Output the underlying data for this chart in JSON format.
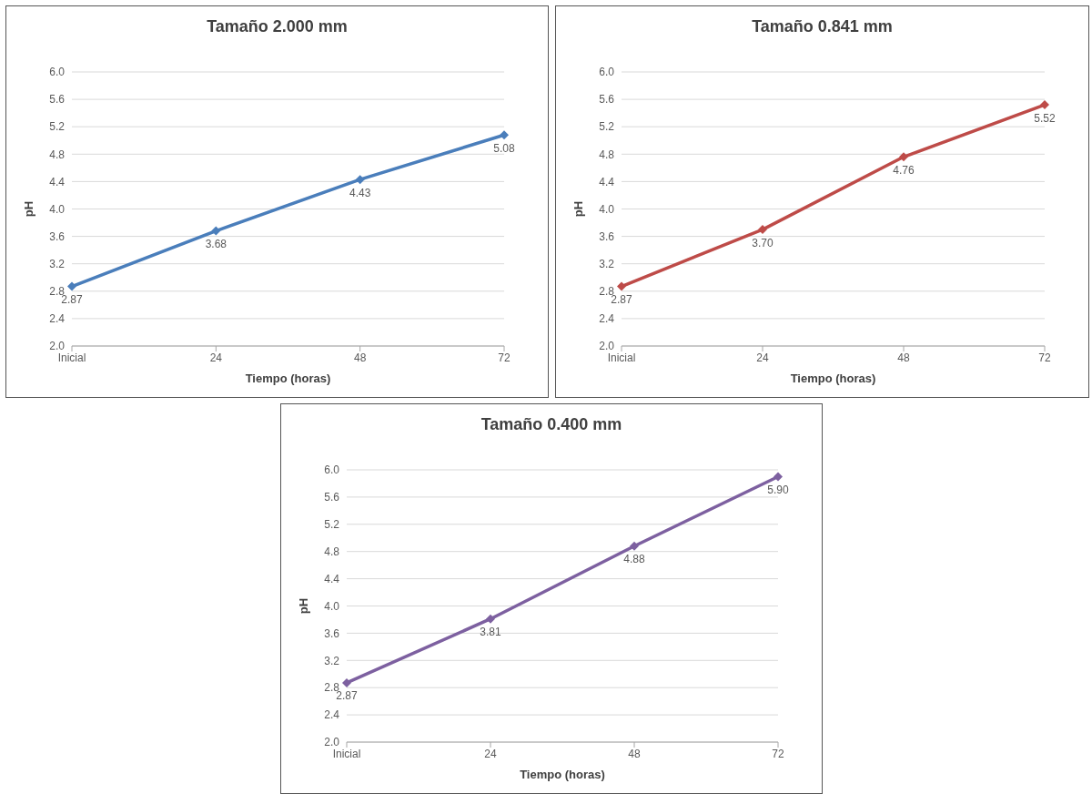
{
  "chart_data": [
    {
      "type": "line",
      "title": "Tamaño 2.000 mm",
      "xlabel": "Tiempo (horas)",
      "ylabel": "pH",
      "categories": [
        "Inicial",
        "24",
        "48",
        "72"
      ],
      "series": [
        {
          "color": "#4a7ebb",
          "values": [
            2.87,
            3.68,
            4.43,
            5.08
          ],
          "value_labels": [
            "2.87",
            "3.68",
            "4.43",
            "5.08"
          ]
        }
      ],
      "ylim": [
        2,
        6
      ],
      "yticks": [
        {
          "value": 2,
          "label": "2.0"
        },
        {
          "value": 2.4,
          "label": "2.4"
        },
        {
          "value": 2.8,
          "label": "2.8"
        },
        {
          "value": 3.2,
          "label": "3.2"
        },
        {
          "value": 3.6,
          "label": "3.6"
        },
        {
          "value": 4,
          "label": "4.0"
        },
        {
          "value": 4.4,
          "label": "4.4"
        },
        {
          "value": 4.8,
          "label": "4.8"
        },
        {
          "value": 5.2,
          "label": "5.2"
        },
        {
          "value": 5.6,
          "label": "5.6"
        },
        {
          "value": 6,
          "label": "6.0"
        }
      ],
      "grid": "y",
      "marker": "diamond",
      "legend": false
    },
    {
      "type": "line",
      "title": "Tamaño 0.841 mm",
      "xlabel": "Tiempo (horas)",
      "ylabel": "pH",
      "categories": [
        "Inicial",
        "24",
        "48",
        "72"
      ],
      "series": [
        {
          "color": "#be4b48",
          "values": [
            2.87,
            3.7,
            4.76,
            5.52
          ],
          "value_labels": [
            "2.87",
            "3.70",
            "4.76",
            "5.52"
          ]
        }
      ],
      "ylim": [
        2,
        6
      ],
      "yticks": [
        {
          "value": 2,
          "label": "2.0"
        },
        {
          "value": 2.4,
          "label": "2.4"
        },
        {
          "value": 2.8,
          "label": "2.8"
        },
        {
          "value": 3.2,
          "label": "3.2"
        },
        {
          "value": 3.6,
          "label": "3.6"
        },
        {
          "value": 4,
          "label": "4.0"
        },
        {
          "value": 4.4,
          "label": "4.4"
        },
        {
          "value": 4.8,
          "label": "4.8"
        },
        {
          "value": 5.2,
          "label": "5.2"
        },
        {
          "value": 5.6,
          "label": "5.6"
        },
        {
          "value": 6,
          "label": "6.0"
        }
      ],
      "grid": "y",
      "marker": "diamond",
      "legend": false
    },
    {
      "type": "line",
      "title": "Tamaño 0.400 mm",
      "xlabel": "Tiempo (horas)",
      "ylabel": "pH",
      "categories": [
        "Inicial",
        "24",
        "48",
        "72"
      ],
      "series": [
        {
          "color": "#7d60a0",
          "values": [
            2.87,
            3.81,
            4.88,
            5.9
          ],
          "value_labels": [
            "2.87",
            "3.81",
            "4.88",
            "5.90"
          ]
        }
      ],
      "ylim": [
        2,
        6
      ],
      "yticks": [
        {
          "value": 2,
          "label": "2.0"
        },
        {
          "value": 2.4,
          "label": "2.4"
        },
        {
          "value": 2.8,
          "label": "2.8"
        },
        {
          "value": 3.2,
          "label": "3.2"
        },
        {
          "value": 3.6,
          "label": "3.6"
        },
        {
          "value": 4,
          "label": "4.0"
        },
        {
          "value": 4.4,
          "label": "4.4"
        },
        {
          "value": 4.8,
          "label": "4.8"
        },
        {
          "value": 5.2,
          "label": "5.2"
        },
        {
          "value": 5.6,
          "label": "5.6"
        },
        {
          "value": 6,
          "label": "6.0"
        }
      ],
      "grid": "y",
      "marker": "diamond",
      "legend": false
    }
  ]
}
